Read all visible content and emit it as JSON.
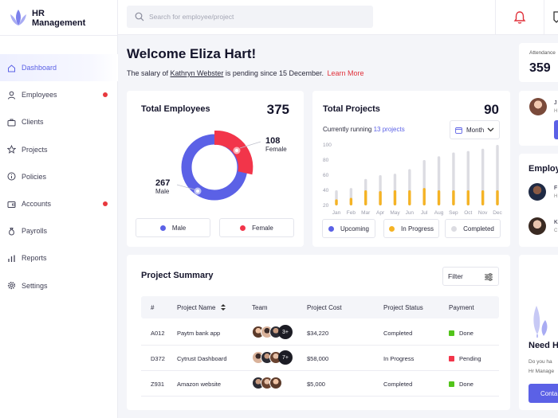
{
  "app": {
    "title_line1": "HR",
    "title_line2": "Management"
  },
  "sidebar": {
    "items": [
      {
        "label": "Dashboard",
        "icon": "home-icon",
        "active": true,
        "dot": false
      },
      {
        "label": "Employees",
        "icon": "user-icon",
        "active": false,
        "dot": true
      },
      {
        "label": "Clients",
        "icon": "briefcase-icon",
        "active": false,
        "dot": false
      },
      {
        "label": "Projects",
        "icon": "star-icon",
        "active": false,
        "dot": false
      },
      {
        "label": "Policies",
        "icon": "info-icon",
        "active": false,
        "dot": false
      },
      {
        "label": "Accounts",
        "icon": "wallet-icon",
        "active": false,
        "dot": true
      },
      {
        "label": "Payrolls",
        "icon": "money-bag-icon",
        "active": false,
        "dot": false
      },
      {
        "label": "Reports",
        "icon": "bar-chart-icon",
        "active": false,
        "dot": false
      },
      {
        "label": "Settings",
        "icon": "gear-icon",
        "active": false,
        "dot": false
      }
    ]
  },
  "search": {
    "placeholder": "Search for employee/project",
    "value": ""
  },
  "welcome": {
    "title": "Welcome Eliza Hart!",
    "msg_pre": "The salary of ",
    "msg_name": "Kathryn Webster",
    "msg_post": " is pending since 15 December.",
    "link": "Learn More"
  },
  "total_employees": {
    "title": "Total Employees",
    "total": "375",
    "male_count": "267",
    "male_label": "Male",
    "female_count": "108",
    "female_label": "Female",
    "legend_male": "Male",
    "legend_female": "Female",
    "colors": {
      "male": "#5b61e6",
      "female": "#f2354a"
    }
  },
  "total_projects": {
    "title": "Total Projects",
    "total": "90",
    "running_pre": "Currently running ",
    "running_link": "13 projects",
    "period": "Month",
    "legend_upcoming": "Upcoming",
    "legend_in_progress": "In Progress",
    "legend_completed": "Completed",
    "colors": {
      "upcoming": "#5b61e6",
      "in_progress": "#f5b324",
      "completed": "#dcdce2"
    }
  },
  "chart_data": {
    "type": "bar",
    "categories": [
      "Jan",
      "Feb",
      "Mar",
      "Apr",
      "May",
      "Jun",
      "Jul",
      "Aug",
      "Sep",
      "Oct",
      "Nov",
      "Dec"
    ],
    "series": [
      {
        "name": "In Progress",
        "values": [
          28,
          30,
          40,
          39,
          40,
          40,
          43,
          40,
          40,
          40,
          40,
          40
        ]
      },
      {
        "name": "Completed",
        "values": [
          40,
          43,
          55,
          60,
          62,
          68,
          80,
          85,
          90,
          92,
          95,
          100
        ]
      }
    ],
    "y_ticks": [
      "100",
      "80",
      "60",
      "40",
      "20"
    ],
    "ylim": [
      20,
      100
    ],
    "title": "",
    "xlabel": "",
    "ylabel": ""
  },
  "project_summary": {
    "title": "Project Summary",
    "filter_label": "Filter",
    "columns": [
      "#",
      "Project Name",
      "Team",
      "Project Cost",
      "Project Status",
      "Payment"
    ],
    "rows": [
      {
        "id": "A012",
        "name": "Paytm bank app",
        "more": "3+",
        "cost": "$34,220",
        "status": "Completed",
        "payment": "Done",
        "pay_color": "#52c41a"
      },
      {
        "id": "D372",
        "name": "Cytrust Dashboard",
        "more": "7+",
        "cost": "$58,000",
        "status": "In Progress",
        "payment": "Pending",
        "pay_color": "#f2354a"
      },
      {
        "id": "Z931",
        "name": "Amazon website",
        "more": "",
        "cost": "$5,000",
        "status": "Completed",
        "payment": "Done",
        "pay_color": "#52c41a"
      }
    ]
  },
  "right_panel": {
    "attendance_label": "Attendance",
    "attendance_value": "359",
    "req_initial": "J",
    "req_sub": "H",
    "emp_title": "Employ",
    "emp1_initial": "F",
    "emp1_sub": "H",
    "emp2_initial": "K",
    "emp2_sub": "C",
    "need_title": "Need H",
    "need_sub1": "Do you ha",
    "need_sub2": "Hr Manage",
    "contact_label": "Conta"
  }
}
